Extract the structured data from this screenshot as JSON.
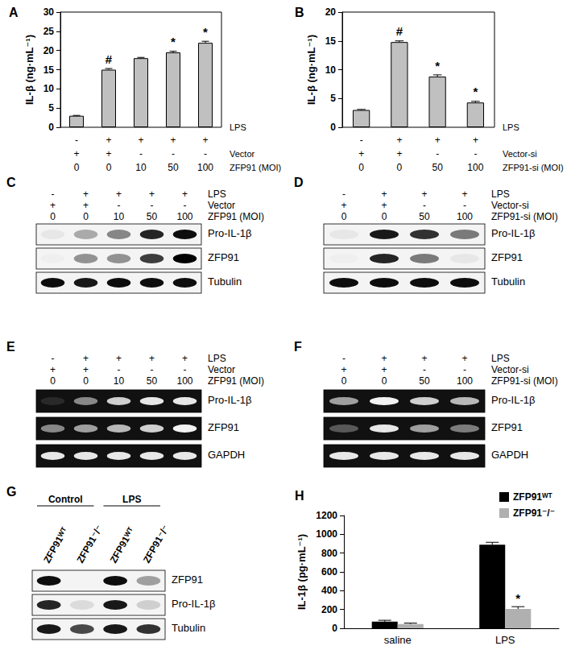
{
  "chart_data": [
    {
      "panel": "A",
      "type": "bar",
      "ylabel": "IL-β (ng·mL⁻¹)",
      "values": [
        3,
        15,
        18,
        19.5,
        22
      ],
      "errors": [
        0.1,
        0.3,
        0.2,
        0.3,
        0.4
      ],
      "annotations": [
        null,
        "#",
        null,
        "*",
        "*"
      ],
      "color": "#c0c0c0",
      "ylim": [
        0,
        30
      ],
      "yticks": [
        0,
        5,
        10,
        15,
        20,
        25,
        30
      ],
      "grid": false,
      "conditions": [
        {
          "label": "LPS",
          "values": [
            "-",
            "+",
            "+",
            "+",
            "+"
          ]
        },
        {
          "label": "Vector",
          "values": [
            "+",
            "+",
            "-",
            "-",
            "-"
          ]
        },
        {
          "label": "ZFP91 (MOI)",
          "values": [
            0,
            0,
            10,
            50,
            100
          ]
        }
      ]
    },
    {
      "panel": "B",
      "type": "bar",
      "ylabel": "IL-β (ng·mL⁻¹)",
      "values": [
        3,
        14.8,
        8.8,
        4.3
      ],
      "errors": [
        0.1,
        0.2,
        0.3,
        0.2
      ],
      "annotations": [
        null,
        "#",
        "*",
        "*"
      ],
      "color": "#c0c0c0",
      "ylim": [
        0,
        20
      ],
      "yticks": [
        0,
        5,
        10,
        15,
        20
      ],
      "grid": false,
      "conditions": [
        {
          "label": "LPS",
          "values": [
            "-",
            "+",
            "+",
            "+"
          ]
        },
        {
          "label": "Vector-si",
          "values": [
            "+",
            "+",
            "-",
            "-"
          ]
        },
        {
          "label": "ZFP91-si (MOI)",
          "values": [
            0,
            0,
            50,
            100
          ]
        }
      ]
    },
    {
      "panel": "H",
      "type": "bar",
      "ylabel": "IL-1β (pg·mL⁻¹)",
      "categories": [
        "saline",
        "LPS"
      ],
      "series": [
        {
          "name": "ZFP91ᵂᵀ",
          "color": "#000000",
          "values": [
            70,
            890
          ],
          "errors": [
            15,
            25
          ]
        },
        {
          "name": "ZFP91⁻/⁻",
          "color": "#b0b0b0",
          "values": [
            45,
            205
          ],
          "errors": [
            10,
            25
          ],
          "annotations": [
            null,
            "*"
          ]
        }
      ],
      "ylim": [
        0,
        1200
      ],
      "yticks": [
        0,
        200,
        400,
        600,
        800,
        1000,
        1200
      ],
      "grid": false,
      "legend": "upper right"
    }
  ],
  "blots": [
    {
      "panel": "C",
      "type": "blot",
      "conditions": [
        {
          "label": "LPS",
          "values": [
            "-",
            "+",
            "+",
            "+",
            "+"
          ]
        },
        {
          "label": "Vector",
          "values": [
            "+",
            "+",
            "-",
            "-",
            "-"
          ]
        },
        {
          "label": "ZFP91 (MOI)",
          "values": [
            0,
            0,
            10,
            50,
            100
          ]
        }
      ],
      "bands": [
        {
          "label": "Pro-IL-1β",
          "intensity": [
            0.05,
            0.3,
            0.45,
            0.85,
            0.95
          ]
        },
        {
          "label": "ZFP91",
          "intensity": [
            0.02,
            0.4,
            0.4,
            0.75,
            1.0
          ]
        },
        {
          "label": "Tubulin",
          "intensity": [
            0.95,
            0.9,
            0.95,
            0.95,
            0.95
          ]
        }
      ]
    },
    {
      "panel": "D",
      "type": "blot",
      "conditions": [
        {
          "label": "LPS",
          "values": [
            "-",
            "+",
            "+",
            "+"
          ]
        },
        {
          "label": "Vector-si",
          "values": [
            "+",
            "+",
            "-",
            "-"
          ]
        },
        {
          "label": "ZFP91-si (MOI)",
          "values": [
            0,
            0,
            50,
            100
          ]
        }
      ],
      "bands": [
        {
          "label": "Pro-IL-1β",
          "intensity": [
            0.05,
            0.9,
            0.8,
            0.5
          ]
        },
        {
          "label": "ZFP91",
          "intensity": [
            0.02,
            0.85,
            0.5,
            0.05
          ]
        },
        {
          "label": "Tubulin",
          "intensity": [
            0.95,
            0.95,
            0.95,
            0.95
          ]
        }
      ]
    },
    {
      "panel": "E",
      "type": "gel",
      "conditions": [
        {
          "label": "LPS",
          "values": [
            "-",
            "+",
            "+",
            "+",
            "+"
          ]
        },
        {
          "label": "Vector",
          "values": [
            "+",
            "+",
            "-",
            "-",
            "-"
          ]
        },
        {
          "label": "ZFP91 (MOI)",
          "values": [
            0,
            0,
            10,
            50,
            100
          ]
        }
      ],
      "bands": [
        {
          "label": "Pro-IL-1β",
          "intensity": [
            0.1,
            0.5,
            0.8,
            0.9,
            0.9
          ]
        },
        {
          "label": "ZFP91",
          "intensity": [
            0.5,
            0.6,
            0.7,
            0.8,
            0.95
          ]
        },
        {
          "label": "GAPDH",
          "intensity": [
            0.9,
            0.9,
            0.9,
            0.9,
            0.9
          ]
        }
      ]
    },
    {
      "panel": "F",
      "type": "gel",
      "conditions": [
        {
          "label": "LPS",
          "values": [
            "-",
            "+",
            "+",
            "+"
          ]
        },
        {
          "label": "Vector-si",
          "values": [
            "+",
            "+",
            "-",
            "-"
          ]
        },
        {
          "label": "ZFP91-si (MOI)",
          "values": [
            0,
            0,
            50,
            100
          ]
        }
      ],
      "bands": [
        {
          "label": "Pro-IL-1β",
          "intensity": [
            0.6,
            0.95,
            0.8,
            0.7
          ]
        },
        {
          "label": "ZFP91",
          "intensity": [
            0.3,
            0.9,
            0.6,
            0.45
          ]
        },
        {
          "label": "GAPDH",
          "intensity": [
            0.9,
            0.9,
            0.9,
            0.9
          ]
        }
      ]
    },
    {
      "panel": "G",
      "type": "blot",
      "lanes": [
        "ZFP91ᵂᵀ",
        "ZFP91⁻/⁻",
        "ZFP91ᵂᵀ",
        "ZFP91⁻/⁻"
      ],
      "groups": [
        {
          "label": "Control",
          "span": 2
        },
        {
          "label": "LPS",
          "span": 2
        }
      ],
      "bands": [
        {
          "label": "ZFP91",
          "intensity": [
            0.95,
            0.0,
            0.95,
            0.35
          ]
        },
        {
          "label": "Pro-IL-1β",
          "intensity": [
            0.85,
            0.1,
            0.9,
            0.15
          ]
        },
        {
          "label": "Tubulin",
          "intensity": [
            0.9,
            0.7,
            0.9,
            0.8
          ]
        }
      ]
    }
  ]
}
